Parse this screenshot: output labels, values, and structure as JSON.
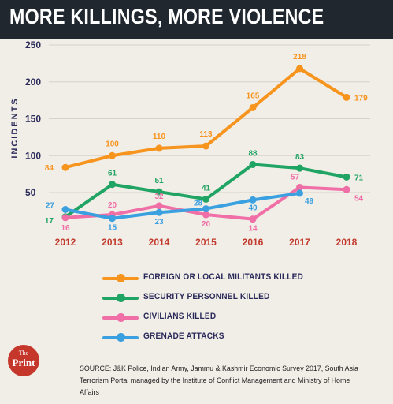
{
  "header": {
    "title": "MORE KILLINGS, MORE VIOLENCE"
  },
  "chart_data": {
    "type": "line",
    "title": "MORE KILLINGS, MORE VIOLENCE",
    "ylabel": "INCIDENTS",
    "xlabel": "",
    "categories": [
      "2012",
      "2013",
      "2014",
      "2015",
      "2016",
      "2017",
      "2018"
    ],
    "yticks": [
      50,
      100,
      150,
      200,
      250
    ],
    "ylim": [
      0,
      250
    ],
    "grid": true,
    "series": [
      {
        "name": "FOREIGN OR LOCAL MILITANTS KILLED",
        "color": "#f7941d",
        "values": [
          84,
          100,
          110,
          113,
          165,
          218,
          179
        ],
        "labels": [
          "84",
          "100",
          "110",
          "113",
          "165",
          "218",
          "179"
        ]
      },
      {
        "name": "SECURITY PERSONNEL KILLED",
        "color": "#1fa463",
        "values": [
          17,
          61,
          51,
          41,
          88,
          83,
          71
        ],
        "labels": [
          "17",
          "61",
          "51",
          "41",
          "88",
          "83",
          "71"
        ]
      },
      {
        "name": "CIVILIANS KILLED",
        "color": "#ef6fa6",
        "values": [
          16,
          20,
          32,
          20,
          14,
          57,
          54
        ],
        "labels": [
          "16",
          "20",
          "32",
          "20",
          "14",
          "57",
          "54"
        ]
      },
      {
        "name": "GRENADE ATTACKS",
        "color": "#3aa0e0",
        "values": [
          27,
          15,
          23,
          28,
          40,
          49,
          null
        ],
        "labels": [
          "27",
          "15",
          "23",
          "28",
          "40",
          "49",
          ""
        ]
      }
    ]
  },
  "legend_items": [
    "FOREIGN OR LOCAL MILITANTS KILLED",
    "SECURITY PERSONNEL KILLED",
    "CIVILIANS KILLED",
    "GRENADE ATTACKS"
  ],
  "logo": {
    "the": "The",
    "print": "Print"
  },
  "source": "SOURCE: J&K Police, Indian Army, Jammu & Kashmir Economic Survey 2017, South Asia Terrorism Portal managed by the Institute of Conflict Management and Ministry of Home Affairs"
}
